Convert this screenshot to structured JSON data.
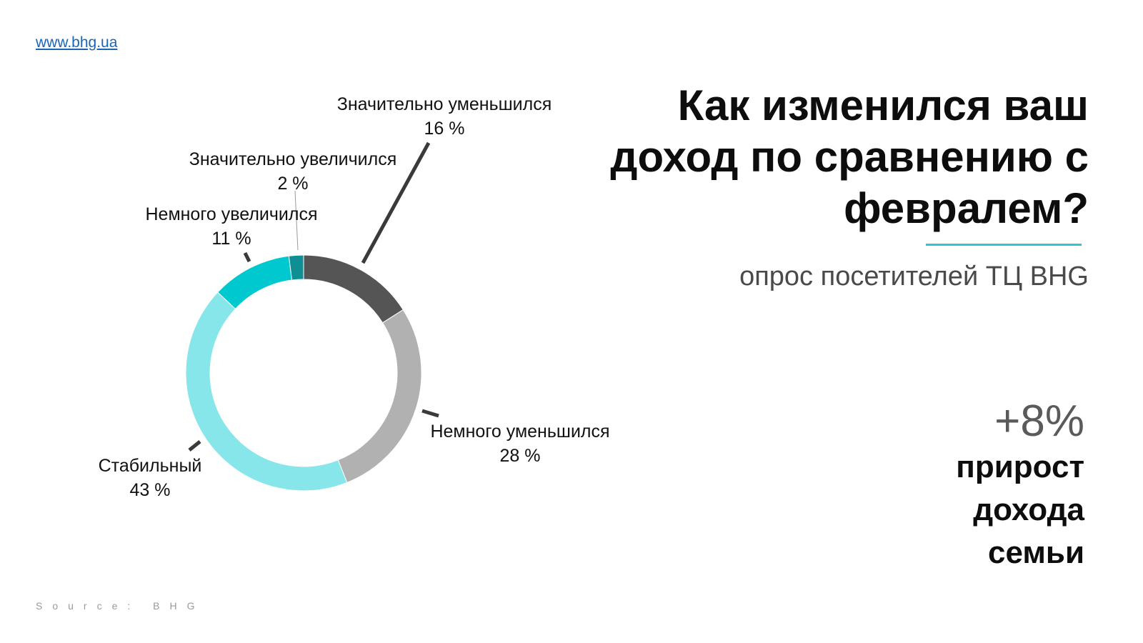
{
  "header": {
    "link_text": "www.bhg.ua"
  },
  "title": "Как изменился ваш доход по сравнению с февралем?",
  "subtitle": "опрос посетителей ТЦ BHG",
  "accent_color": "#2fc5cf",
  "stat": {
    "value": "+8%",
    "caption_lines": [
      "прирост",
      "дохода",
      "семьи"
    ]
  },
  "source": "Source: BHG",
  "chart_data": {
    "type": "pie",
    "title": "",
    "categories": [
      "Значительно уменьшился",
      "Немного уменьшился",
      "Стабильный",
      "Немного увеличился",
      "Значительно увеличился"
    ],
    "values": [
      16,
      28,
      43,
      11,
      2
    ],
    "value_labels": [
      "16 %",
      "28 %",
      "43 %",
      "11 %",
      "2 %"
    ],
    "colors": [
      "#555555",
      "#b1b1b1",
      "#86e6ea",
      "#00c8cf",
      "#0f8f93"
    ],
    "hole": "donut",
    "start_angle": "12 o'clock, clockwise",
    "legend": "none (direct labels)"
  }
}
